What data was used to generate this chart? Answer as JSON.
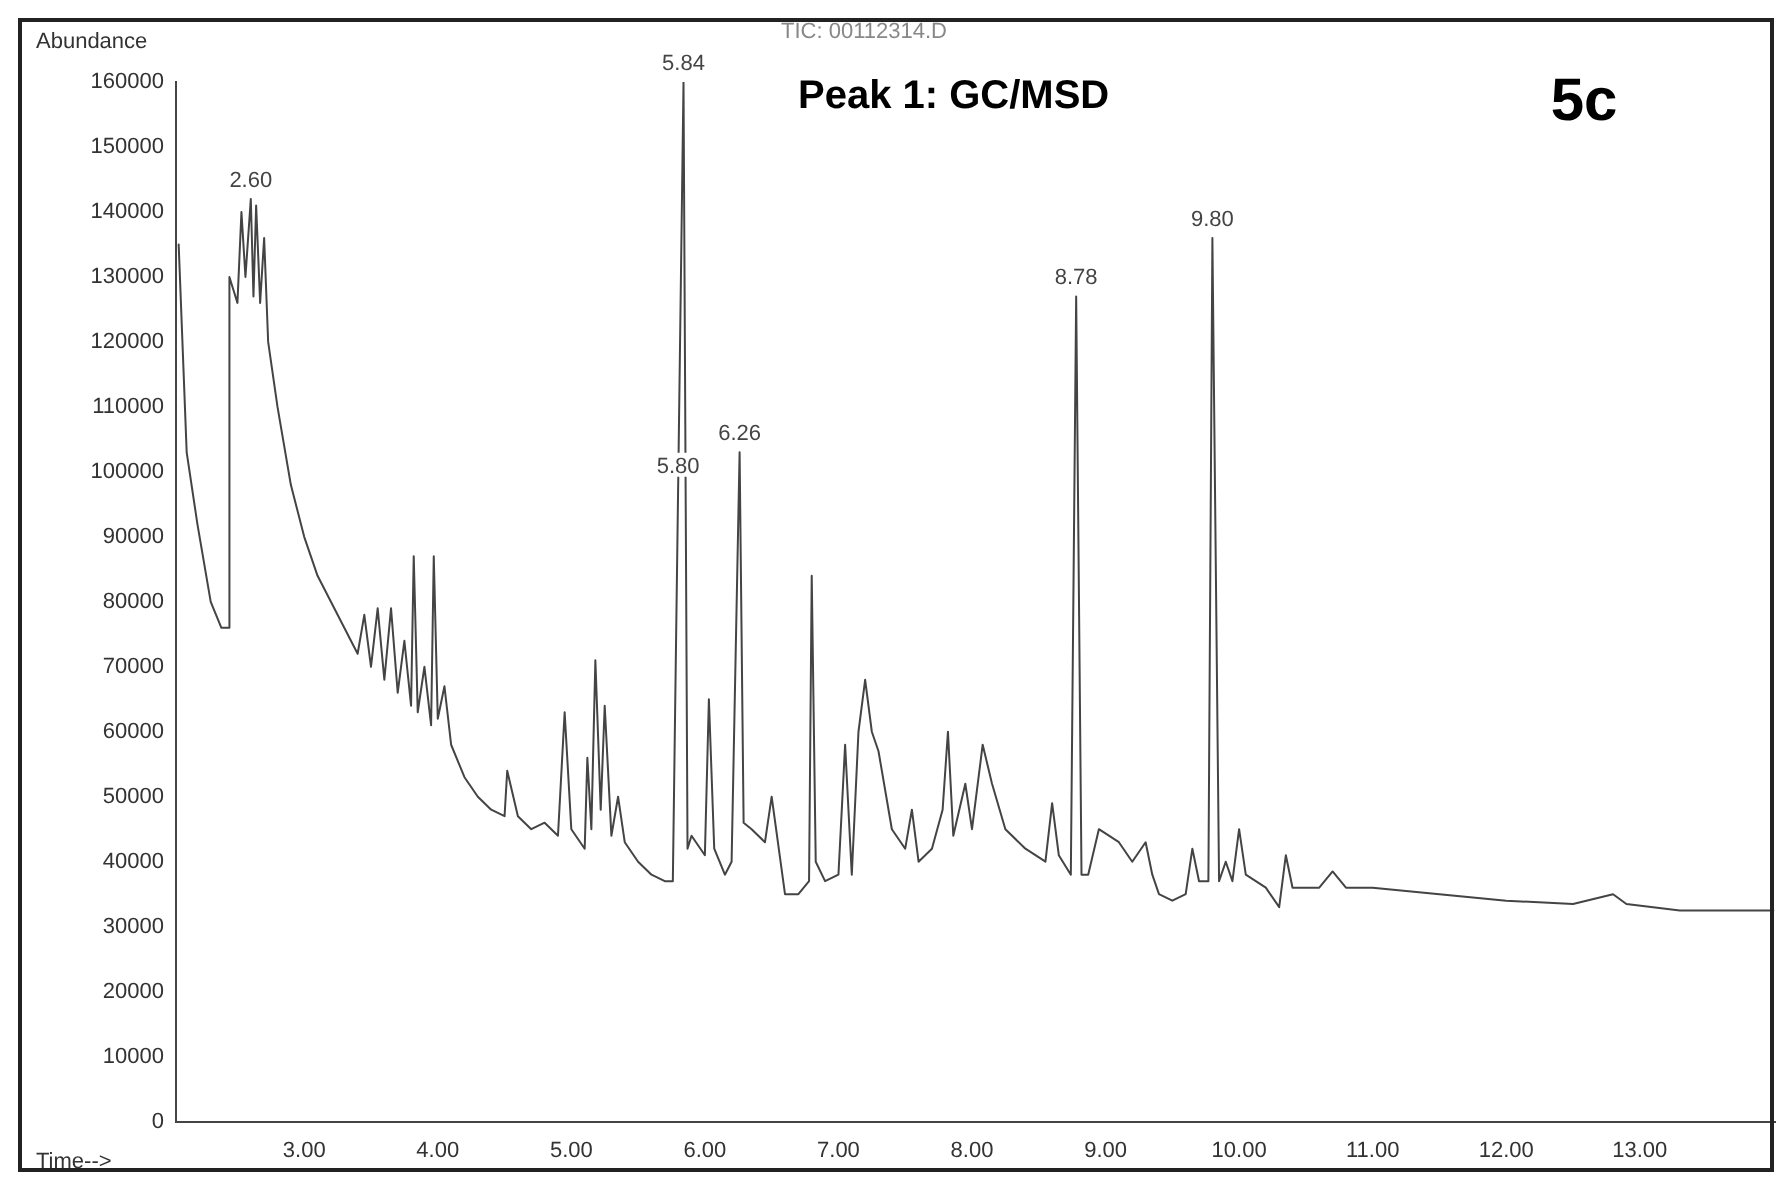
{
  "chart_data": {
    "type": "line",
    "title": "Peak 1: GC/MSD",
    "subtitle": "TIC: 00112314.D",
    "xlabel": "Time-->",
    "ylabel": "Abundance",
    "annotations": [
      "5c",
      {
        "text": "2.60",
        "x": 2.6,
        "y": 142000
      },
      {
        "text": "5.84",
        "x": 5.84,
        "y": 160000
      },
      {
        "text": "5.80",
        "x": 5.8,
        "y": 98000
      },
      {
        "text": "6.26",
        "x": 6.26,
        "y": 103000
      },
      {
        "text": "8.78",
        "x": 8.78,
        "y": 127000
      },
      {
        "text": "9.80",
        "x": 9.8,
        "y": 136000
      }
    ],
    "xlim": [
      2.04,
      14.02
    ],
    "xticks": [
      {
        "value": 3,
        "label": "3.00"
      },
      {
        "value": 4,
        "label": "4.00"
      },
      {
        "value": 5,
        "label": "5.00"
      },
      {
        "value": 6,
        "label": "6.00"
      },
      {
        "value": 7,
        "label": "7.00"
      },
      {
        "value": 8,
        "label": "8.00"
      },
      {
        "value": 9,
        "label": "9.00"
      },
      {
        "value": 10,
        "label": "10.00"
      },
      {
        "value": 11,
        "label": "11.00"
      },
      {
        "value": 12,
        "label": "12.00"
      },
      {
        "value": 13,
        "label": "13.00"
      }
    ],
    "ylim": [
      0,
      160000
    ],
    "yticks": [
      0,
      10000,
      20000,
      30000,
      40000,
      50000,
      60000,
      70000,
      80000,
      90000,
      100000,
      110000,
      120000,
      130000,
      140000,
      150000,
      160000
    ],
    "grid": false,
    "legend": false,
    "marker": "none",
    "line_style": "solid",
    "series": [
      {
        "color": "#444444",
        "x": [
          2.06,
          2.12,
          2.2,
          2.3,
          2.38,
          2.43,
          2.44,
          2.47,
          2.5,
          2.53,
          2.56,
          2.6,
          2.62,
          2.64,
          2.67,
          2.7,
          2.73,
          2.8,
          2.9,
          3.0,
          3.1,
          3.2,
          3.3,
          3.4,
          3.45,
          3.5,
          3.55,
          3.6,
          3.65,
          3.7,
          3.75,
          3.8,
          3.82,
          3.85,
          3.9,
          3.95,
          3.97,
          4.0,
          4.05,
          4.1,
          4.2,
          4.3,
          4.4,
          4.5,
          4.52,
          4.6,
          4.7,
          4.8,
          4.9,
          4.95,
          5.0,
          5.1,
          5.12,
          5.15,
          5.18,
          5.22,
          5.25,
          5.3,
          5.35,
          5.4,
          5.5,
          5.6,
          5.7,
          5.76,
          5.8,
          5.84,
          5.87,
          5.9,
          6.0,
          6.03,
          6.07,
          6.15,
          6.2,
          6.26,
          6.29,
          6.35,
          6.45,
          6.5,
          6.6,
          6.7,
          6.78,
          6.8,
          6.83,
          6.9,
          7.0,
          7.05,
          7.1,
          7.15,
          7.2,
          7.25,
          7.3,
          7.4,
          7.5,
          7.55,
          7.6,
          7.7,
          7.78,
          7.82,
          7.86,
          7.95,
          8.0,
          8.08,
          8.15,
          8.25,
          8.4,
          8.55,
          8.6,
          8.65,
          8.74,
          8.78,
          8.82,
          8.87,
          8.95,
          9.1,
          9.2,
          9.3,
          9.35,
          9.4,
          9.5,
          9.6,
          9.65,
          9.7,
          9.77,
          9.8,
          9.85,
          9.9,
          9.95,
          10.0,
          10.05,
          10.2,
          10.3,
          10.35,
          10.4,
          10.6,
          10.7,
          10.8,
          11.0,
          11.5,
          12.0,
          12.5,
          12.8,
          12.9,
          13.3,
          14.0
        ],
        "values": [
          135000,
          103000,
          92000,
          80000,
          76000,
          76000,
          130000,
          128000,
          126000,
          140000,
          130000,
          142000,
          127000,
          141000,
          126000,
          136000,
          120000,
          110000,
          98000,
          90000,
          84000,
          80000,
          76000,
          72000,
          78000,
          70000,
          79000,
          68000,
          79000,
          66000,
          74000,
          64000,
          87000,
          63000,
          70000,
          61000,
          87000,
          62000,
          67000,
          58000,
          53000,
          50000,
          48000,
          47000,
          54000,
          47000,
          45000,
          46000,
          44000,
          63000,
          45000,
          42000,
          56000,
          45000,
          71000,
          48000,
          64000,
          44000,
          50000,
          43000,
          40000,
          38000,
          37000,
          37000,
          98000,
          160000,
          42000,
          44000,
          41000,
          65000,
          42000,
          38000,
          40000,
          103000,
          46000,
          45000,
          43000,
          50000,
          35000,
          35000,
          37000,
          84000,
          40000,
          37000,
          38000,
          58000,
          38000,
          60000,
          68000,
          60000,
          57000,
          45000,
          42000,
          48000,
          40000,
          42000,
          48000,
          60000,
          44000,
          52000,
          45000,
          58000,
          52000,
          45000,
          42000,
          40000,
          49000,
          41000,
          38000,
          127000,
          38000,
          38000,
          45000,
          43000,
          40000,
          43000,
          38000,
          35000,
          34000,
          35000,
          42000,
          37000,
          37000,
          136000,
          37000,
          40000,
          37000,
          45000,
          38000,
          36000,
          33000,
          41000,
          36000,
          36000,
          38500,
          36000,
          36000,
          35000,
          34000,
          33500,
          35000,
          33500,
          32500,
          32500
        ]
      }
    ]
  }
}
